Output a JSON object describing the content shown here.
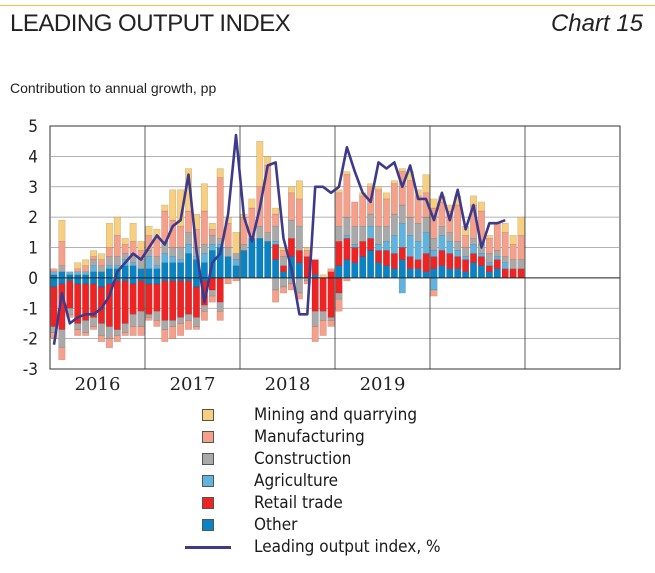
{
  "header": {
    "title": "LEADING OUTPUT INDEX",
    "chart_number": "Chart 15",
    "subtitle": "Contribution to annual growth, pp"
  },
  "colors": {
    "mining": "#f8cf7e",
    "manufacturing": "#f4a08a",
    "construction": "#a9a9a9",
    "agriculture": "#5fb3de",
    "retail": "#ee2424",
    "other": "#0a83c4",
    "line": "#3d3a8c"
  },
  "legend": [
    {
      "key": "mining",
      "label": "Mining and quarrying"
    },
    {
      "key": "manufacturing",
      "label": "Manufacturing"
    },
    {
      "key": "construction",
      "label": "Construction"
    },
    {
      "key": "agriculture",
      "label": "Agriculture"
    },
    {
      "key": "retail",
      "label": "Retail trade"
    },
    {
      "key": "other",
      "label": "Other"
    },
    {
      "key": "line",
      "label": "Leading output index, %"
    }
  ],
  "chart_data": {
    "type": "bar",
    "stacked": true,
    "ylim": [
      -3,
      5
    ],
    "yticks": [
      5,
      4,
      3,
      2,
      1,
      0,
      -1,
      -2,
      -3
    ],
    "grid": true,
    "x_labels": [
      "2016",
      "2017",
      "2018",
      "2019"
    ],
    "periods_per_year": 12,
    "x_start": "2016-01",
    "series": [
      {
        "key": "other",
        "name": "Other",
        "values": [
          0.1,
          0.2,
          0.1,
          0.1,
          0.1,
          0.2,
          0.2,
          0.3,
          0.3,
          0.4,
          0.4,
          0.3,
          0.3,
          0.3,
          0.5,
          0.5,
          0.5,
          0.8,
          0.6,
          0.5,
          0.9,
          1.0,
          0.7,
          0.4,
          0.9,
          1.3,
          1.3,
          1.2,
          0.6,
          0.2,
          0.7,
          0.5,
          0.0,
          0.1,
          0.0,
          0.0,
          0.4,
          0.6,
          0.5,
          0.7,
          0.9,
          0.5,
          0.4,
          0.3,
          0.6,
          0.3,
          0.3,
          0.2,
          0.3,
          0.4,
          0.3,
          0.3,
          0.2,
          0.5,
          0.4,
          0.2,
          0.3,
          -0.1,
          0.0,
          0.0,
          0,
          0,
          0,
          0,
          0,
          0,
          0,
          0,
          0,
          0,
          0,
          0
        ],
        "neg": [
          -0.3,
          -0.2,
          -0.1,
          -0.2,
          -0.2,
          -0.2,
          -0.3,
          -0.2,
          -0.1,
          -0.1,
          -0.2,
          -0.1,
          -0.2,
          -0.2,
          -0.1,
          -0.1,
          -0.1,
          -0.1,
          -0.3,
          -0.1,
          0,
          0,
          0,
          0,
          0,
          0,
          0,
          0,
          0,
          0,
          0,
          0,
          0,
          0,
          0,
          0,
          0,
          0,
          0,
          0,
          0,
          0,
          0,
          0,
          0,
          0,
          0,
          0,
          0,
          0,
          0,
          0,
          0,
          0,
          0,
          0,
          0,
          0,
          0,
          0,
          0,
          0,
          0,
          0,
          0,
          0,
          0,
          0,
          0,
          0,
          0,
          0
        ]
      },
      {
        "key": "retail",
        "name": "Retail trade",
        "values": [
          0,
          0,
          0,
          0,
          0,
          0,
          0,
          0,
          0,
          0,
          0,
          0,
          0,
          0,
          0,
          0,
          0,
          0,
          0,
          0,
          0,
          0,
          0,
          0,
          0,
          0,
          0,
          0,
          0.5,
          0.2,
          0.6,
          0.4,
          0.7,
          0.5,
          0.0,
          0.2,
          0.8,
          0.7,
          0.5,
          0.5,
          0.4,
          0.4,
          0.5,
          0.5,
          0.4,
          0.4,
          0.3,
          0.6,
          0.4,
          0.5,
          0.5,
          0.4,
          0.4,
          0.3,
          0.3,
          0.2,
          0.3,
          0.3,
          0.3,
          0.3,
          0,
          0,
          0,
          0,
          0,
          0,
          0,
          0,
          0,
          0,
          0,
          0
        ],
        "neg": [
          -1.3,
          -1.5,
          -0.9,
          -1.3,
          -1.2,
          -1.1,
          -1.2,
          -1.4,
          -1.6,
          -1.4,
          -1.0,
          -1.0,
          -1.0,
          -0.9,
          -1.3,
          -1.3,
          -1.2,
          -1.1,
          -1.0,
          -0.8,
          -0.4,
          -0.8,
          0,
          0,
          0,
          0,
          0,
          0,
          0,
          0,
          0,
          0,
          0,
          -1.1,
          -1.1,
          -1.3,
          -0.5,
          0,
          0,
          0,
          0,
          0,
          0,
          0,
          0,
          0,
          0,
          0,
          0,
          0,
          0,
          0,
          0,
          0,
          0,
          0,
          0,
          0,
          0,
          0,
          0,
          0,
          0,
          0,
          0,
          0,
          0,
          0,
          0,
          0,
          0,
          0
        ]
      },
      {
        "key": "agriculture",
        "name": "Agriculture",
        "values": [
          0.1,
          0.0,
          0.1,
          0.1,
          0.1,
          0.2,
          0.0,
          0.1,
          0.1,
          0.2,
          0.1,
          0.0,
          0.4,
          0.1,
          0.3,
          0.2,
          0.1,
          0.3,
          0.1,
          0.3,
          0.2,
          0.1,
          0.0,
          0.2,
          0.0,
          0.0,
          0.0,
          0.0,
          0.1,
          0.0,
          0.0,
          0.0,
          0.0,
          0.0,
          0.0,
          0.0,
          0.0,
          0.1,
          0.1,
          0.0,
          0.4,
          0.2,
          0.3,
          0.6,
          0.8,
          0.7,
          0.6,
          0.7,
          0.2,
          0.5,
          0.4,
          0.2,
          0.1,
          0.3,
          0.1,
          0.1,
          0.1,
          0.2,
          0.0,
          0.0,
          0,
          0,
          0,
          0,
          0,
          0,
          0,
          0,
          0,
          0,
          0,
          0
        ],
        "neg": [
          0,
          0,
          0,
          0,
          0,
          0,
          0,
          0,
          0,
          0,
          0,
          0,
          0,
          0,
          0,
          0,
          0,
          0,
          0,
          0,
          0,
          0,
          0,
          0,
          0,
          0,
          0,
          0,
          0,
          0,
          0,
          0,
          0,
          0,
          0,
          0,
          0,
          0,
          0,
          0,
          0,
          0,
          0,
          0,
          -0.5,
          0,
          0,
          0,
          -0.4,
          0,
          0,
          0,
          0,
          0,
          0,
          0,
          0,
          0,
          0,
          0,
          0,
          0,
          0,
          0,
          0,
          0,
          0,
          0,
          0,
          0,
          0,
          0
        ]
      },
      {
        "key": "construction",
        "name": "Construction",
        "values": [
          0.0,
          0.2,
          0.0,
          0.0,
          0.0,
          0.2,
          0.2,
          0.3,
          0.3,
          0.2,
          0.3,
          0.3,
          0.2,
          0.3,
          0.4,
          0.3,
          0.4,
          0.4,
          0.3,
          0.3,
          0.3,
          0.2,
          0.3,
          0.2,
          0.2,
          0.0,
          0.4,
          0.3,
          0.5,
          0.3,
          0.6,
          0.8,
          0.0,
          0.0,
          0.0,
          0.0,
          0.5,
          0.6,
          0.6,
          0.5,
          0.4,
          0.6,
          0.5,
          0.7,
          0.6,
          0.6,
          0.6,
          0.5,
          0.4,
          0.3,
          0.3,
          0.3,
          0.3,
          0.2,
          0.3,
          0.3,
          0.2,
          0.2,
          0.3,
          0.3,
          0,
          0,
          0,
          0,
          0,
          0,
          0,
          0,
          0,
          0,
          0,
          0
        ],
        "neg": [
          -0.2,
          -0.6,
          -0.2,
          -0.2,
          -0.4,
          -0.3,
          -0.4,
          -0.4,
          -0.2,
          -0.3,
          -0.4,
          -0.5,
          -0.1,
          -0.3,
          -0.3,
          -0.2,
          -0.2,
          -0.2,
          -0.3,
          -0.2,
          -0.2,
          -0.3,
          0,
          0,
          0,
          0,
          0,
          0,
          -0.4,
          -0.3,
          -0.2,
          -0.5,
          -0.1,
          -0.5,
          -0.3,
          -0.1,
          -0.2,
          0,
          0,
          0,
          0,
          0,
          0,
          0,
          0,
          0,
          0,
          0,
          0,
          0,
          0,
          0,
          0,
          0,
          0,
          0,
          0,
          0,
          0,
          0,
          0,
          0,
          0,
          0,
          0,
          0,
          0,
          0,
          0,
          0,
          0,
          0
        ]
      },
      {
        "key": "manufacturing",
        "name": "Manufacturing",
        "values": [
          0.1,
          0.8,
          0.0,
          0.1,
          0.2,
          0.1,
          0.2,
          0.3,
          0.7,
          0.3,
          0.4,
          0.3,
          0.5,
          0.6,
          1.0,
          0.9,
          0.7,
          0.7,
          0.6,
          1.1,
          0.2,
          2.0,
          0.8,
          0.0,
          0.9,
          1.0,
          1.3,
          2.2,
          0.4,
          0.2,
          0.9,
          0.9,
          0.2,
          0.0,
          0.0,
          0.1,
          1.1,
          1.4,
          0.8,
          1.0,
          0.9,
          1.2,
          0.9,
          1.0,
          1.1,
          1.2,
          0.9,
          0.8,
          1.0,
          0.8,
          0.7,
          1.2,
          0.4,
          1.1,
          1.1,
          0.5,
          0.9,
          0.8,
          0.5,
          0.8,
          0,
          0,
          0,
          0,
          0,
          0,
          0,
          0,
          0,
          0,
          0,
          0
        ],
        "neg": [
          -0.2,
          -0.4,
          -0.1,
          -0.2,
          -0.1,
          -0.1,
          -0.2,
          -0.3,
          -0.2,
          -0.1,
          -0.3,
          -0.3,
          -0.1,
          -0.2,
          -0.4,
          -0.4,
          -0.4,
          -0.3,
          -0.1,
          -0.3,
          -0.2,
          -0.3,
          -0.2,
          -0.1,
          0,
          0,
          0,
          0,
          -0.4,
          -0.2,
          -0.2,
          -0.2,
          -0.1,
          -0.5,
          -0.5,
          -0.2,
          -0.4,
          -0.1,
          0,
          0,
          0,
          0,
          0,
          0,
          0,
          0,
          0,
          0,
          -0.2,
          0,
          0,
          0,
          0,
          0,
          0,
          0,
          0,
          0,
          0,
          0,
          0,
          0,
          0,
          0,
          0,
          0,
          0,
          0,
          0,
          0,
          0,
          0
        ]
      },
      {
        "key": "mining",
        "name": "Mining and quarrying",
        "values": [
          0.0,
          0.7,
          0.0,
          0.2,
          0.2,
          0.2,
          0.2,
          0.8,
          0.6,
          0.2,
          0.6,
          0.3,
          0.3,
          0.3,
          0.2,
          1.0,
          1.2,
          1.4,
          0.5,
          0.9,
          0.2,
          0.3,
          0.2,
          0.7,
          0.1,
          0.3,
          1.5,
          0.3,
          0.2,
          0.1,
          0.2,
          0.6,
          0.1,
          0.0,
          0.1,
          0.0,
          0.1,
          0.1,
          0.0,
          0.1,
          0.1,
          0.1,
          0.2,
          0.1,
          0.1,
          0.3,
          0.2,
          0.6,
          0.3,
          0.2,
          0.2,
          0.3,
          0.3,
          0.3,
          0.3,
          0.1,
          0.0,
          0.3,
          0.3,
          0.6,
          0,
          0,
          0,
          0,
          0,
          0,
          0,
          0,
          0,
          0,
          0,
          0
        ]
      }
    ],
    "line": {
      "name": "Leading output index, %",
      "values": [
        -2.2,
        -0.5,
        -1.5,
        -1.3,
        -1.2,
        -1.2,
        -1.0,
        -0.6,
        0.2,
        0.5,
        0.8,
        0.6,
        1.0,
        1.4,
        1.1,
        1.7,
        1.9,
        3.4,
        0.9,
        -0.8,
        0.5,
        0.8,
        2.1,
        4.7,
        2.0,
        1.2,
        2.3,
        3.7,
        3.8,
        1.3,
        0.3,
        -1.2,
        -1.2,
        3.0,
        3.0,
        2.8,
        3.0,
        4.3,
        3.5,
        2.8,
        2.5,
        3.8,
        3.6,
        3.8,
        3.0,
        3.7,
        2.6,
        2.6,
        1.9,
        2.8,
        1.9,
        2.9,
        1.6,
        2.4,
        1.0,
        1.8,
        1.8,
        1.9,
        null,
        null,
        null,
        null,
        null,
        null,
        null,
        null,
        null,
        null,
        null,
        null,
        null,
        null
      ]
    }
  }
}
